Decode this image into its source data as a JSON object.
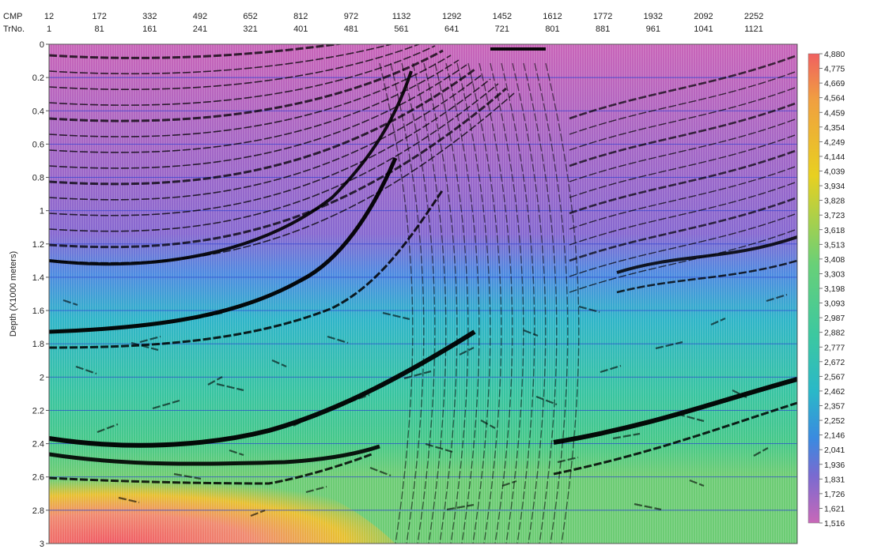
{
  "chart_data": {
    "type": "heatmap",
    "title": "",
    "header_labels": {
      "cmp": "CMP",
      "trace": "TrNo."
    },
    "ylabel": "Depth (X1000 meters)",
    "y_unit_multiplier": 1000,
    "ylim": [
      0,
      3
    ],
    "y_ticks": [
      "0",
      "0.2",
      "0.4",
      "0.6",
      "0.8",
      "1",
      "1.2",
      "1.4",
      "1.6",
      "1.8",
      "2",
      "2.2",
      "2.4",
      "2.6",
      "2.8",
      "3"
    ],
    "y_tick_values": [
      0,
      0.2,
      0.4,
      0.6,
      0.8,
      1,
      1.2,
      1.4,
      1.6,
      1.8,
      2,
      2.2,
      2.4,
      2.6,
      2.8,
      3
    ],
    "cmp_ticks": [
      "12",
      "172",
      "332",
      "492",
      "652",
      "812",
      "972",
      "1132",
      "1292",
      "1452",
      "1612",
      "1772",
      "1932",
      "2092",
      "2252"
    ],
    "trace_ticks": [
      "1",
      "81",
      "161",
      "241",
      "321",
      "401",
      "481",
      "561",
      "641",
      "721",
      "801",
      "881",
      "961",
      "1041",
      "1121"
    ],
    "trace_range": [
      1,
      1190
    ],
    "grid": "horizontal",
    "colorbar": {
      "position": "right",
      "labels": [
        "4,880",
        "4,775",
        "4,669",
        "4,564",
        "4,459",
        "4,354",
        "4,249",
        "4,144",
        "4,039",
        "3,934",
        "3,828",
        "3,723",
        "3,618",
        "3,513",
        "3,408",
        "3,303",
        "3,198",
        "3,093",
        "2,987",
        "2,882",
        "2,777",
        "2,672",
        "2,567",
        "2,462",
        "2,357",
        "2,252",
        "2,146",
        "2,041",
        "1,936",
        "1,831",
        "1,726",
        "1,621",
        "1,516"
      ],
      "min": 1516,
      "max": 4880,
      "colors": [
        "#c868b8",
        "#7a6ad0",
        "#3a8ae0",
        "#2ab8c8",
        "#3cc8a0",
        "#68d078",
        "#e8d020",
        "#f0a040",
        "#f06060"
      ]
    },
    "velocity_zones": [
      {
        "depth_range": [
          0,
          1.3
        ],
        "velocity": 1650
      },
      {
        "depth_range": [
          1.3,
          1.7
        ],
        "velocity": 2250
      },
      {
        "depth_range": [
          1.7,
          2.5
        ],
        "velocity": 2950
      },
      {
        "depth_range": [
          2.5,
          3.0
        ],
        "velocity": 4500
      }
    ]
  }
}
